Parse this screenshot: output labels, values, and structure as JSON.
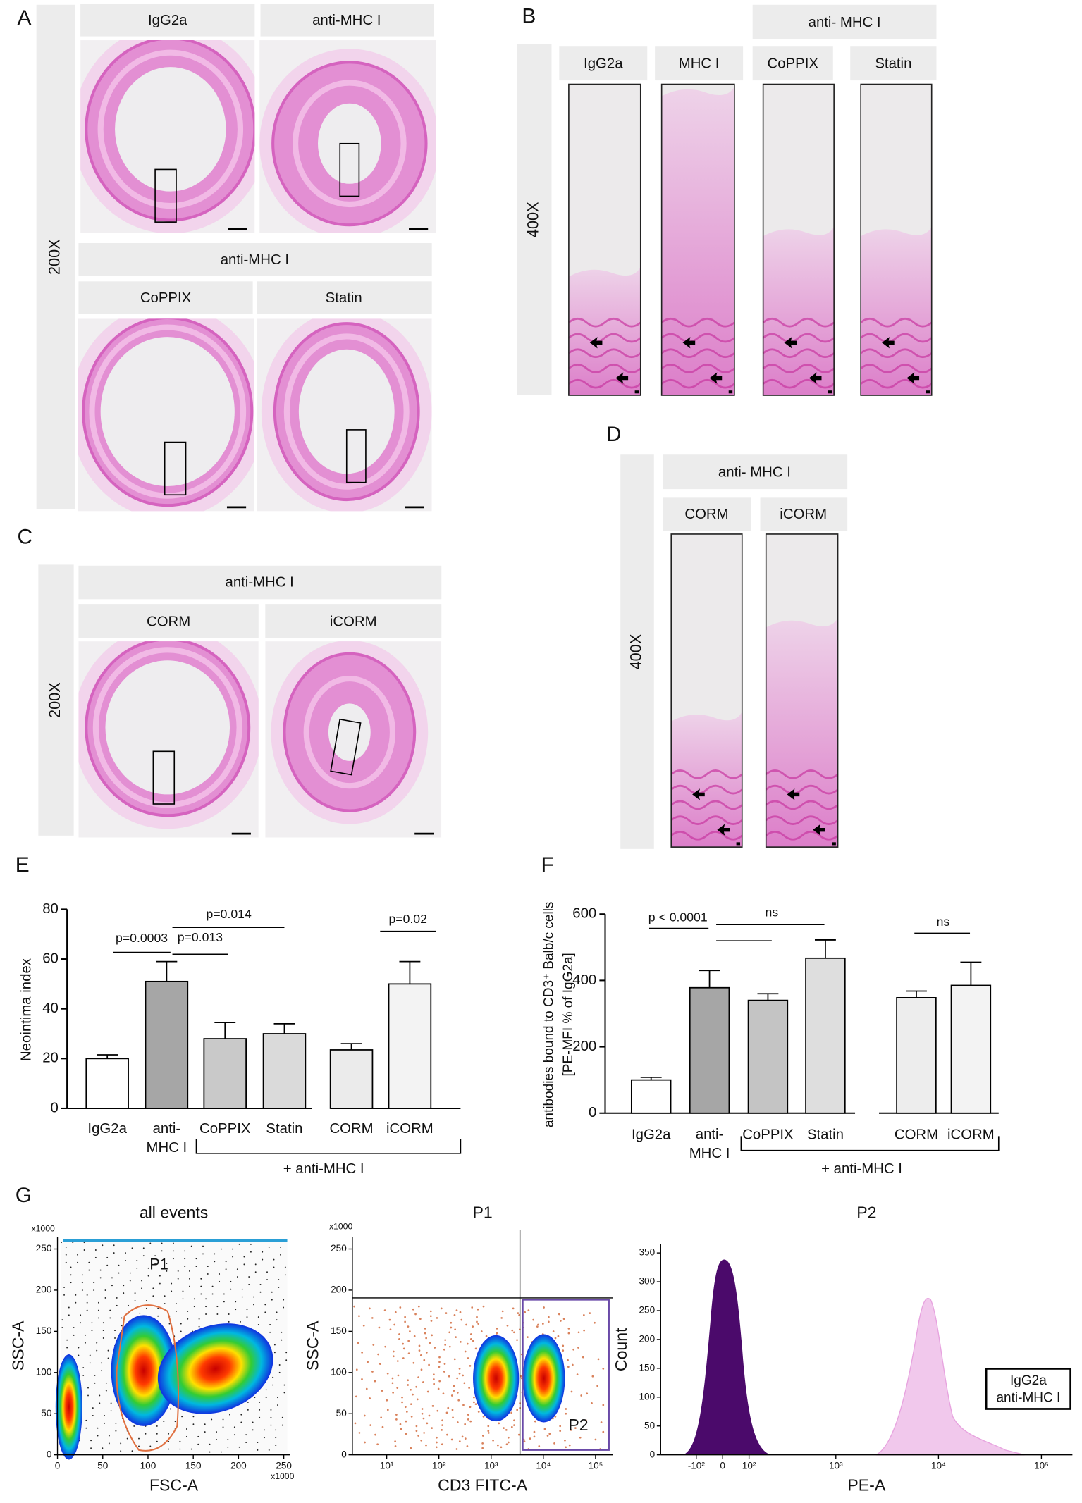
{
  "figure_labels": {
    "a": "A",
    "b": "B",
    "c": "C",
    "d": "D",
    "e": "E",
    "f": "F",
    "g": "G"
  },
  "panel_a": {
    "magnification": "200X",
    "labels": [
      "IgG2a",
      "anti-MHC I",
      "CoPPIX",
      "Statin"
    ],
    "group_label": "anti-MHC I"
  },
  "panel_b": {
    "magnification": "400X",
    "group_label": "anti- MHC I",
    "labels": [
      "IgG2a",
      "MHC I",
      "CoPPIX",
      "Statin"
    ]
  },
  "panel_c": {
    "magnification": "200X",
    "group_label": "anti-MHC I",
    "labels": [
      "CORM",
      "iCORM"
    ]
  },
  "panel_d": {
    "magnification": "400X",
    "group_label": "anti- MHC I",
    "labels": [
      "CORM",
      "iCORM"
    ]
  },
  "chart_data": [
    {
      "type": "bar",
      "ylabel": "Neointima index",
      "categories": [
        "IgG2a",
        "anti-MHC I",
        "CoPPIX",
        "Statin",
        "CORM",
        "iCORM"
      ],
      "values": [
        20,
        51,
        28,
        30,
        23.5,
        50
      ],
      "errors": [
        1.5,
        8,
        6.5,
        4,
        2.5,
        9
      ],
      "colors": [
        "#ffffff",
        "#a6a6a6",
        "#c9c9c9",
        "#dadada",
        "#ebebeb",
        "#f3f3f3"
      ],
      "ylim": [
        0,
        80
      ],
      "yticks": [
        0,
        20,
        40,
        60,
        80
      ],
      "annotations": [
        "p=0.0003",
        "p=0.013",
        "p=0.014",
        "p=0.02"
      ],
      "group_label": "+ anti-MHC I"
    },
    {
      "type": "bar",
      "ylabel": [
        "antibodies bound to CD3⁺ Balb/c cells",
        "[PE-MFI % of IgG2a]"
      ],
      "categories": [
        "IgG2a",
        "anti-MHC I",
        "CoPPIX",
        "Statin",
        "CORM",
        "iCORM"
      ],
      "values": [
        100,
        378,
        340,
        467,
        348,
        385
      ],
      "errors": [
        8,
        52,
        20,
        55,
        20,
        70
      ],
      "colors": [
        "#ffffff",
        "#a6a6a6",
        "#c4c4c4",
        "#dedede",
        "#ededed",
        "#f3f3f3"
      ],
      "ylim": [
        0,
        600
      ],
      "yticks": [
        0,
        200,
        400,
        600
      ],
      "annotations": [
        "p < 0.0001",
        "ns",
        "ns"
      ],
      "group_label": "+ anti-MHC I"
    }
  ],
  "panel_g": {
    "plots": [
      {
        "title": "all events",
        "xlabel": "FSC-A",
        "ylabel": "SSC-A",
        "x_unit": "x1000",
        "y_unit": "x1000",
        "gate_label": "P1",
        "xlim": [
          0,
          257
        ],
        "ylim": [
          0,
          265
        ],
        "xticks": [
          0,
          50,
          100,
          150,
          200,
          250
        ],
        "yticks": [
          0,
          50,
          100,
          150,
          200,
          250
        ]
      },
      {
        "title": "P1",
        "xlabel": "CD3 FITC-A",
        "ylabel": "SSC-A",
        "y_unit": "x1000",
        "gate_label": "P2",
        "xscale": "log",
        "xlim": [
          2.2,
          214000
        ],
        "ylim": [
          0,
          265
        ],
        "xticks": [
          {
            "value": 10,
            "label": "10¹"
          },
          {
            "value": 100,
            "label": "10²"
          },
          {
            "value": 1000,
            "label": "10³"
          },
          {
            "value": 10000,
            "label": "10⁴"
          },
          {
            "value": 100000,
            "label": "10⁵"
          }
        ],
        "yticks": [
          0,
          50,
          100,
          150,
          200,
          250
        ]
      },
      {
        "title": "P2",
        "xlabel": "PE-A",
        "ylabel": "Count",
        "xscale": "asinh",
        "xlim": [
          -300,
          200000
        ],
        "ylim": [
          0,
          365
        ],
        "xticks": [
          {
            "value": -100,
            "label": "-10²"
          },
          0,
          {
            "value": 100,
            "label": "10²"
          },
          {
            "value": 1000,
            "label": "10³"
          },
          {
            "value": 10000,
            "label": "10⁴"
          },
          {
            "value": 100000,
            "label": "10⁵"
          }
        ],
        "yticks": [
          0,
          50,
          100,
          150,
          200,
          250,
          300,
          350
        ],
        "series": [
          {
            "name": "IgG2a",
            "color": "#4b0a6b"
          },
          {
            "name": "anti-MHC I",
            "color": "#e7a3df"
          }
        ]
      }
    ]
  }
}
